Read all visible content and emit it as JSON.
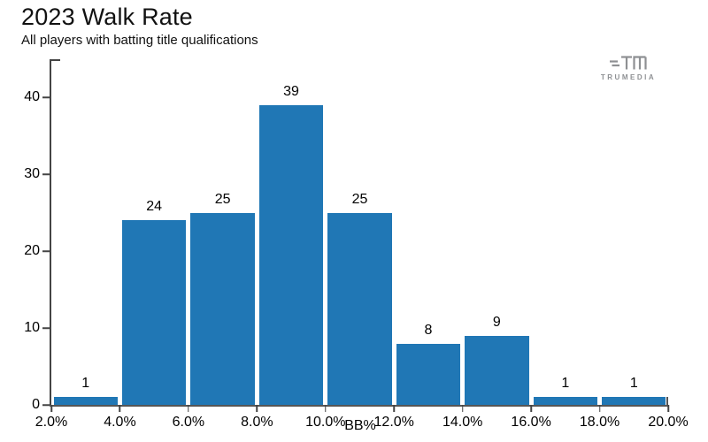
{
  "header": {
    "title": "2023 Walk Rate",
    "subtitle": "All players with batting title qualifications"
  },
  "logo": {
    "brand": "TRUMEDIA",
    "icon": "trumedia-tm-icon"
  },
  "chart_data": {
    "type": "bar",
    "subtype": "histogram",
    "title": "2023 Walk Rate",
    "subtitle": "All players with batting title qualifications",
    "xlabel": "BB%",
    "ylabel": "",
    "bin_edges_pct": [
      2.0,
      4.0,
      6.0,
      8.0,
      10.0,
      12.0,
      14.0,
      16.0,
      18.0,
      20.0
    ],
    "categories": [
      "2.0-4.0%",
      "4.0-6.0%",
      "6.0-8.0%",
      "8.0-10.0%",
      "10.0-12.0%",
      "12.0-14.0%",
      "14.0-16.0%",
      "16.0-18.0%",
      "18.0-20.0%"
    ],
    "values": [
      1,
      24,
      25,
      39,
      25,
      8,
      9,
      1,
      1
    ],
    "bar_labels": [
      "1",
      "24",
      "25",
      "39",
      "25",
      "8",
      "9",
      "1",
      "1"
    ],
    "x_tick_labels": [
      "2.0%",
      "4.0%",
      "6.0%",
      "8.0%",
      "10.0%",
      "12.0%",
      "14.0%",
      "16.0%",
      "18.0%",
      "20.0%"
    ],
    "y_ticks": [
      0,
      10,
      20,
      30,
      40
    ],
    "y_tick_labels": [
      "0",
      "10",
      "20",
      "30",
      "40"
    ],
    "ylim": [
      0,
      45
    ],
    "grid": false,
    "legend": false,
    "bar_color": "#2077b5",
    "axis_color": "#444444",
    "text_color": "#000000"
  }
}
